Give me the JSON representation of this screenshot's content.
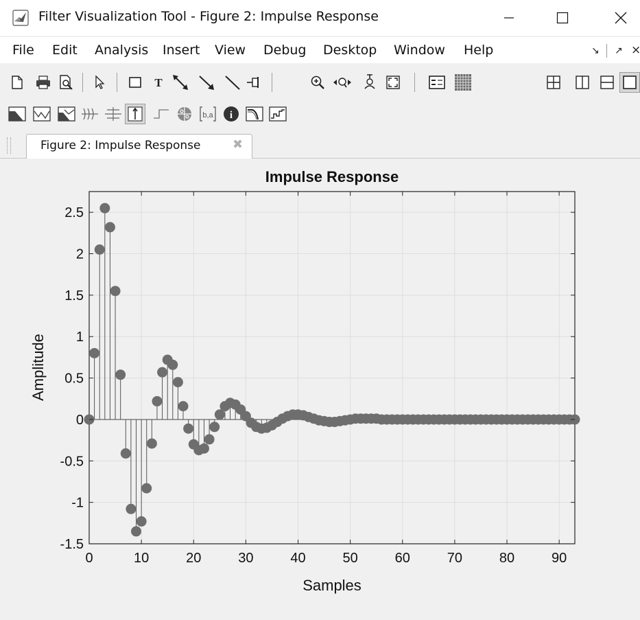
{
  "window": {
    "title": "Filter Visualization Tool - Figure 2: Impulse Response",
    "app_icon": "matlab-icon",
    "controls": [
      "minimize-icon",
      "maximize-icon",
      "close-icon"
    ]
  },
  "menubar": {
    "items": [
      "File",
      "Edit",
      "Analysis",
      "Insert",
      "View",
      "Debug",
      "Desktop",
      "Window",
      "Help"
    ],
    "dock_glyph": "↘",
    "undock_glyph": "↗",
    "close_glyph": "×"
  },
  "toolbar1": {
    "tools": [
      "new-figure-icon",
      "print-icon",
      "print-preview-icon",
      "select-arrow-icon",
      "insert-rectangle-icon",
      "insert-text-icon",
      "insert-double-arrow-icon",
      "insert-arrow-icon",
      "insert-line-icon",
      "pin-icon",
      "zoom-in-icon",
      "pan-icon",
      "data-cursor-icon",
      "full-view-icon",
      "legend-icon",
      "grid-icon"
    ],
    "layout_tools": [
      "layout-tile-icon",
      "layout-split-vertical-icon",
      "layout-split-horizontal-icon",
      "layout-maximize-icon"
    ]
  },
  "toolbar2": {
    "tools": [
      "magnitude-response-icon",
      "phase-response-icon",
      "magnitude-phase-icon",
      "group-delay-icon",
      "phase-delay-icon",
      "impulse-response-icon",
      "step-response-icon",
      "pole-zero-icon",
      "filter-coefficients-icon",
      "filter-information-icon",
      "magnitude-estimate-icon",
      "round-off-noise-icon"
    ],
    "active": "impulse-response-icon",
    "text_glyph": "b,a",
    "info_glyph": "i"
  },
  "tab": {
    "label": "Figure 2: Impulse Response",
    "close_glyph": "✖"
  },
  "chart_data": {
    "type": "stem",
    "title": "Impulse Response",
    "xlabel": "Samples",
    "ylabel": "Amplitude",
    "xlim": [
      0,
      93
    ],
    "ylim": [
      -1.5,
      2.75
    ],
    "xticks": [
      0,
      10,
      20,
      30,
      40,
      50,
      60,
      70,
      80,
      90
    ],
    "yticks": [
      -1.5,
      -1,
      -0.5,
      0,
      0.5,
      1,
      1.5,
      2,
      2.5
    ],
    "ytick_labels": [
      "-1.5",
      "-1",
      "-0.5",
      "0",
      "0.5",
      "1",
      "1.5",
      "2",
      "2.5"
    ],
    "grid": true,
    "marker_color": "#6e6e6e",
    "x": [
      0,
      1,
      2,
      3,
      4,
      5,
      6,
      7,
      8,
      9,
      10,
      11,
      12,
      13,
      14,
      15,
      16,
      17,
      18,
      19,
      20,
      21,
      22,
      23,
      24,
      25,
      26,
      27,
      28,
      29,
      30,
      31,
      32,
      33,
      34,
      35,
      36,
      37,
      38,
      39,
      40,
      41,
      42,
      43,
      44,
      45,
      46,
      47,
      48,
      49,
      50,
      51,
      52,
      53,
      54,
      55,
      56,
      57,
      58,
      59,
      60,
      61,
      62,
      63,
      64,
      65,
      66,
      67,
      68,
      69,
      70,
      71,
      72,
      73,
      74,
      75,
      76,
      77,
      78,
      79,
      80,
      81,
      82,
      83,
      84,
      85,
      86,
      87,
      88,
      89,
      90,
      91,
      92,
      93
    ],
    "values": [
      0,
      0.8,
      2.05,
      2.55,
      2.32,
      1.55,
      0.54,
      -0.41,
      -1.08,
      -1.35,
      -1.23,
      -0.83,
      -0.29,
      0.22,
      0.57,
      0.72,
      0.66,
      0.45,
      0.16,
      -0.11,
      -0.3,
      -0.37,
      -0.35,
      -0.24,
      -0.09,
      0.06,
      0.16,
      0.2,
      0.18,
      0.12,
      0.04,
      -0.04,
      -0.09,
      -0.11,
      -0.1,
      -0.07,
      -0.03,
      0.01,
      0.04,
      0.06,
      0.06,
      0.05,
      0.03,
      0.01,
      -0.01,
      -0.02,
      -0.03,
      -0.03,
      -0.02,
      -0.01,
      0,
      0.01,
      0.01,
      0.01,
      0.01,
      0.01,
      0,
      0,
      0,
      0,
      0,
      0,
      0,
      0,
      0,
      0,
      0,
      0,
      0,
      0,
      0,
      0,
      0,
      0,
      0,
      0,
      0,
      0,
      0,
      0,
      0,
      0,
      0,
      0,
      0,
      0,
      0,
      0,
      0,
      0,
      0,
      0,
      0,
      0
    ]
  }
}
